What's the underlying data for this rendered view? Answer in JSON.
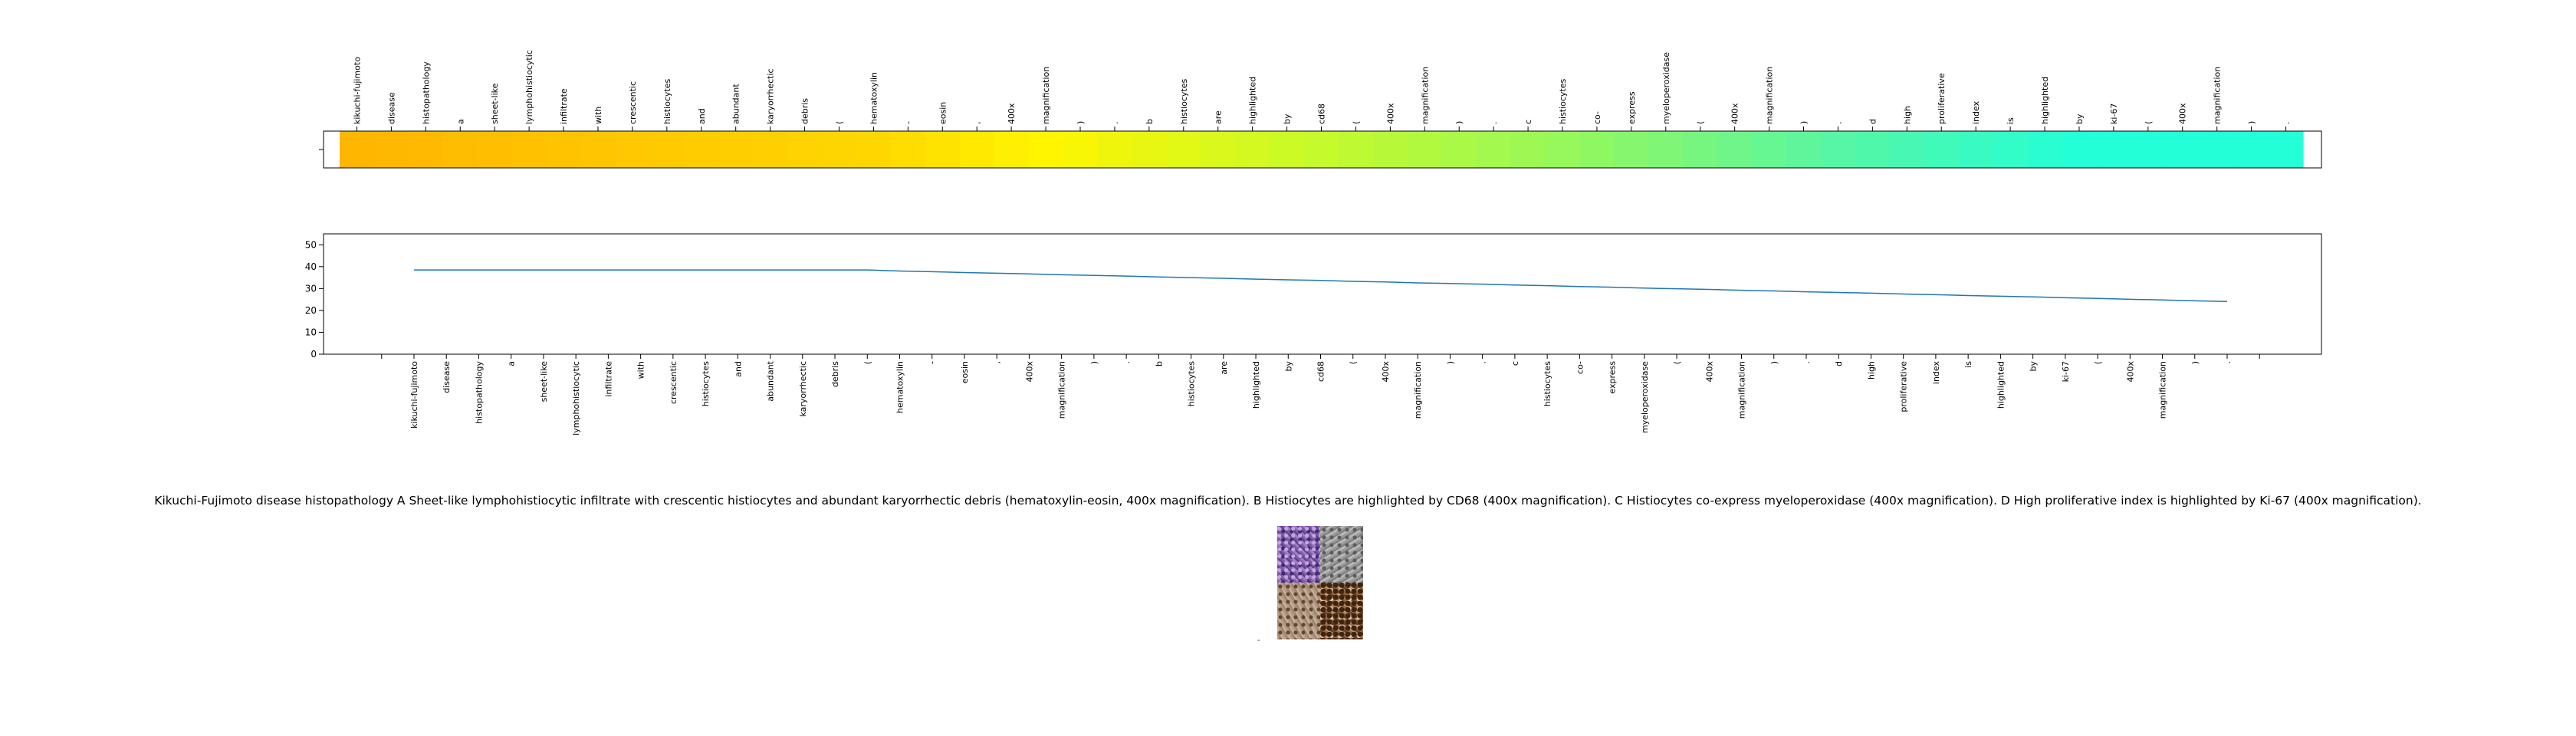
{
  "chart_data": [
    {
      "type": "heatmap",
      "title": "",
      "xlabel": "",
      "ylabel": "",
      "colormap": "wistia-to-cyan (orange, yellow, green, cyan)",
      "tokens": [
        "kikuchi-fujimoto",
        "disease",
        "histopathology",
        "a",
        "sheet-like",
        "lymphohistiocytic",
        "infiltrate",
        "with",
        "crescentic",
        "histiocytes",
        "and",
        "abundant",
        "karyorrhectic",
        "debris",
        "(",
        "hematoxylin",
        "-",
        "eosin",
        ",",
        "400x",
        "magnification",
        ")",
        ".",
        "b",
        "histiocytes",
        "are",
        "highlighted",
        "by",
        "cd68",
        "(",
        "400x",
        "magnification",
        ")",
        ".",
        "c",
        "histiocytes",
        "co-",
        "express",
        "myeloperoxidase",
        "(",
        "400x",
        "magnification",
        ")",
        ".",
        "d",
        "high",
        "proliferative",
        "index",
        "is",
        "highlighted",
        "by",
        "ki-67",
        "(",
        "400x",
        "magnification",
        ")",
        "."
      ],
      "values": [
        0,
        0.02,
        0.04,
        0.06,
        0.08,
        0.1,
        0.12,
        0.14,
        0.16,
        0.18,
        0.2,
        0.22,
        0.24,
        0.26,
        0.28,
        0.3,
        0.32,
        0.34,
        0.36,
        0.38,
        0.4,
        0.42,
        0.44,
        0.46,
        0.48,
        0.5,
        0.52,
        0.54,
        0.56,
        0.58,
        0.6,
        0.62,
        0.64,
        0.66,
        0.68,
        0.7,
        0.72,
        0.74,
        0.76,
        0.78,
        0.8,
        0.82,
        0.84,
        0.86,
        0.88,
        0.9,
        0.92,
        0.94,
        0.96,
        0.98,
        1.0,
        1.0,
        1.0,
        1.0,
        1.0,
        1.0,
        1.0
      ]
    },
    {
      "type": "line",
      "title": "",
      "xlabel": "",
      "ylabel": "",
      "ylim": [
        0,
        55
      ],
      "yticks": [
        0,
        10,
        20,
        30,
        40,
        50
      ],
      "grid": false,
      "categories": [
        "kikuchi-fujimoto",
        "disease",
        "histopathology",
        "a",
        "sheet-like",
        "lymphohistiocytic",
        "infiltrate",
        "with",
        "crescentic",
        "histiocytes",
        "and",
        "abundant",
        "karyorrhectic",
        "debris",
        "(",
        "hematoxylin",
        "-",
        "eosin",
        ",",
        "400x",
        "magnification",
        ")",
        ".",
        "b",
        "histiocytes",
        "are",
        "highlighted",
        "by",
        "cd68",
        "(",
        "400x",
        "magnification",
        ")",
        ".",
        "c",
        "histiocytes",
        "co-",
        "express",
        "myeloperoxidase",
        "(",
        "400x",
        "magnification",
        ")",
        ".",
        "d",
        "high",
        "proliferative",
        "index",
        "is",
        "highlighted",
        "by",
        "ki-67",
        "(",
        "400x",
        "magnification",
        ")",
        "."
      ],
      "values": [
        38.5,
        38.5,
        38.5,
        38.5,
        38.5,
        38.5,
        38.5,
        38.5,
        38.5,
        38.5,
        38.5,
        38.5,
        38.5,
        38.5,
        38.5,
        38.0,
        37.7,
        37.3,
        37.0,
        36.7,
        36.3,
        36.0,
        35.7,
        35.3,
        35.0,
        34.7,
        34.3,
        34.0,
        33.7,
        33.3,
        33.0,
        32.6,
        32.3,
        32.0,
        31.6,
        31.3,
        30.9,
        30.6,
        30.2,
        29.9,
        29.6,
        29.2,
        28.9,
        28.5,
        28.2,
        27.9,
        27.5,
        27.2,
        26.8,
        26.5,
        26.2,
        25.8,
        25.5,
        25.1,
        24.8,
        24.4,
        24.1
      ]
    }
  ],
  "caption": "Kikuchi-Fujimoto disease histopathology A Sheet-like lymphohistiocytic infiltrate with crescentic histiocytes and abundant karyorrhectic debris (hematoxylin-eosin, 400x magnification). B Histiocytes are highlighted by CD68 (400x magnification). C Histiocytes co-express myeloperoxidase (400x magnification). D High proliferative index is highlighted by Ki-67 (400x magnification).",
  "figure": {
    "panels": [
      "A",
      "B",
      "C",
      "D"
    ],
    "mark": "-"
  }
}
